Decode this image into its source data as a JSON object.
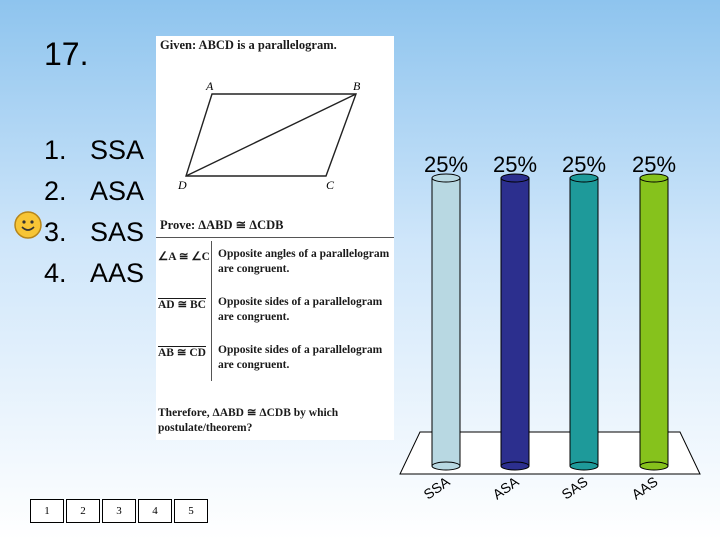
{
  "slide": {
    "number": "17.",
    "choices": [
      {
        "num": "1.",
        "label": "SSA"
      },
      {
        "num": "2.",
        "label": "ASA"
      },
      {
        "num": "3.",
        "label": "SAS"
      },
      {
        "num": "4.",
        "label": "AAS"
      }
    ],
    "selected_icon": "smiley-icon"
  },
  "figure": {
    "given": "Given: ABCD is a parallelogram.",
    "vertices": {
      "A": "A",
      "B": "B",
      "C": "C",
      "D": "D"
    },
    "prove": "Prove: ΔABD ≅ ΔCDB",
    "rows": [
      {
        "statement": "∠A ≅ ∠C",
        "reason": "Opposite angles of a parallelogram are congruent."
      },
      {
        "statement": "AD ≅ BC",
        "reason": "Opposite sides of a parallelogram are congruent."
      },
      {
        "statement": "AB ≅ CD",
        "reason": "Opposite sides of a parallelogram are congruent."
      }
    ],
    "therefore": "Therefore, ΔABD ≅ ΔCDB by which postulate/theorem?"
  },
  "chart_data": {
    "type": "bar",
    "categories": [
      "SSA",
      "ASA",
      "SAS",
      "AAS"
    ],
    "values": [
      25,
      25,
      25,
      25
    ],
    "data_labels": [
      "25%",
      "25%",
      "25%",
      "25%"
    ],
    "colors": [
      "#b8d8e2",
      "#2c2f8e",
      "#1e9a9a",
      "#86c21c"
    ],
    "ylim": [
      0,
      100
    ],
    "title": "",
    "xlabel": "",
    "ylabel": "",
    "grid": false
  },
  "navigation": {
    "buttons": [
      "1",
      "2",
      "3",
      "4",
      "5"
    ]
  }
}
